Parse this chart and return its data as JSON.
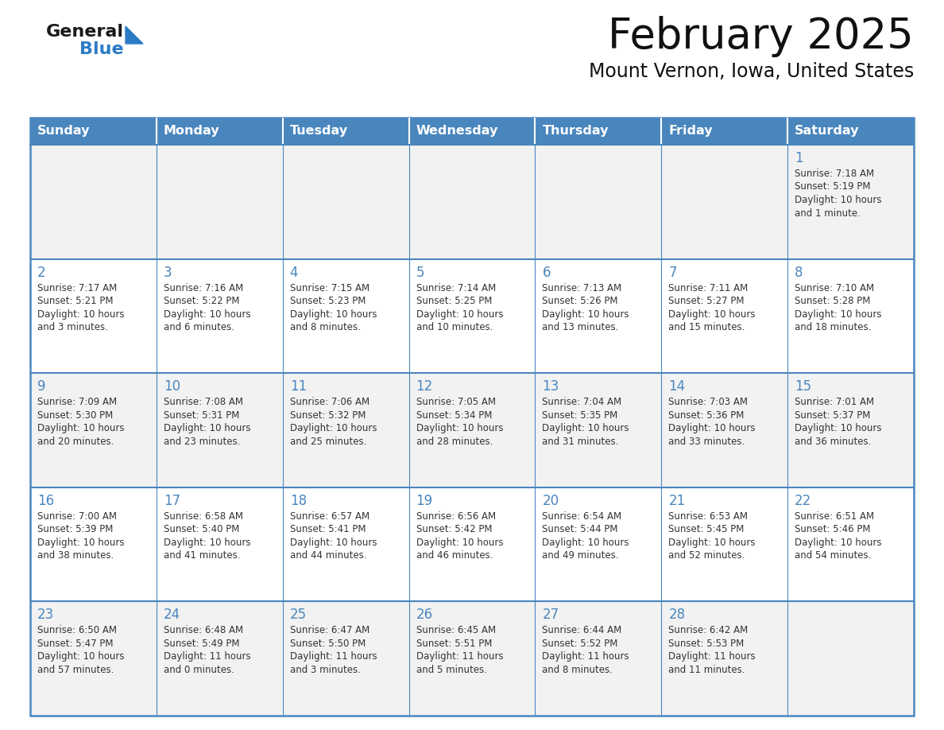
{
  "title": "February 2025",
  "subtitle": "Mount Vernon, Iowa, United States",
  "header_bg": "#4a86be",
  "header_text_color": "#ffffff",
  "cell_bg_odd": "#f2f2f2",
  "cell_bg_even": "#ffffff",
  "day_number_color": "#4a86be",
  "cell_text_color": "#333333",
  "border_color": "#4a86be",
  "days_of_week": [
    "Sunday",
    "Monday",
    "Tuesday",
    "Wednesday",
    "Thursday",
    "Friday",
    "Saturday"
  ],
  "logo_general_color": "#1a1a1a",
  "logo_blue_color": "#2b7bc4",
  "calendar_data": [
    [
      null,
      null,
      null,
      null,
      null,
      null,
      {
        "day": 1,
        "sunrise": "7:18 AM",
        "sunset": "5:19 PM",
        "daylight": "10 hours",
        "daylight2": "and 1 minute."
      }
    ],
    [
      {
        "day": 2,
        "sunrise": "7:17 AM",
        "sunset": "5:21 PM",
        "daylight": "10 hours",
        "daylight2": "and 3 minutes."
      },
      {
        "day": 3,
        "sunrise": "7:16 AM",
        "sunset": "5:22 PM",
        "daylight": "10 hours",
        "daylight2": "and 6 minutes."
      },
      {
        "day": 4,
        "sunrise": "7:15 AM",
        "sunset": "5:23 PM",
        "daylight": "10 hours",
        "daylight2": "and 8 minutes."
      },
      {
        "day": 5,
        "sunrise": "7:14 AM",
        "sunset": "5:25 PM",
        "daylight": "10 hours",
        "daylight2": "and 10 minutes."
      },
      {
        "day": 6,
        "sunrise": "7:13 AM",
        "sunset": "5:26 PM",
        "daylight": "10 hours",
        "daylight2": "and 13 minutes."
      },
      {
        "day": 7,
        "sunrise": "7:11 AM",
        "sunset": "5:27 PM",
        "daylight": "10 hours",
        "daylight2": "and 15 minutes."
      },
      {
        "day": 8,
        "sunrise": "7:10 AM",
        "sunset": "5:28 PM",
        "daylight": "10 hours",
        "daylight2": "and 18 minutes."
      }
    ],
    [
      {
        "day": 9,
        "sunrise": "7:09 AM",
        "sunset": "5:30 PM",
        "daylight": "10 hours",
        "daylight2": "and 20 minutes."
      },
      {
        "day": 10,
        "sunrise": "7:08 AM",
        "sunset": "5:31 PM",
        "daylight": "10 hours",
        "daylight2": "and 23 minutes."
      },
      {
        "day": 11,
        "sunrise": "7:06 AM",
        "sunset": "5:32 PM",
        "daylight": "10 hours",
        "daylight2": "and 25 minutes."
      },
      {
        "day": 12,
        "sunrise": "7:05 AM",
        "sunset": "5:34 PM",
        "daylight": "10 hours",
        "daylight2": "and 28 minutes."
      },
      {
        "day": 13,
        "sunrise": "7:04 AM",
        "sunset": "5:35 PM",
        "daylight": "10 hours",
        "daylight2": "and 31 minutes."
      },
      {
        "day": 14,
        "sunrise": "7:03 AM",
        "sunset": "5:36 PM",
        "daylight": "10 hours",
        "daylight2": "and 33 minutes."
      },
      {
        "day": 15,
        "sunrise": "7:01 AM",
        "sunset": "5:37 PM",
        "daylight": "10 hours",
        "daylight2": "and 36 minutes."
      }
    ],
    [
      {
        "day": 16,
        "sunrise": "7:00 AM",
        "sunset": "5:39 PM",
        "daylight": "10 hours",
        "daylight2": "and 38 minutes."
      },
      {
        "day": 17,
        "sunrise": "6:58 AM",
        "sunset": "5:40 PM",
        "daylight": "10 hours",
        "daylight2": "and 41 minutes."
      },
      {
        "day": 18,
        "sunrise": "6:57 AM",
        "sunset": "5:41 PM",
        "daylight": "10 hours",
        "daylight2": "and 44 minutes."
      },
      {
        "day": 19,
        "sunrise": "6:56 AM",
        "sunset": "5:42 PM",
        "daylight": "10 hours",
        "daylight2": "and 46 minutes."
      },
      {
        "day": 20,
        "sunrise": "6:54 AM",
        "sunset": "5:44 PM",
        "daylight": "10 hours",
        "daylight2": "and 49 minutes."
      },
      {
        "day": 21,
        "sunrise": "6:53 AM",
        "sunset": "5:45 PM",
        "daylight": "10 hours",
        "daylight2": "and 52 minutes."
      },
      {
        "day": 22,
        "sunrise": "6:51 AM",
        "sunset": "5:46 PM",
        "daylight": "10 hours",
        "daylight2": "and 54 minutes."
      }
    ],
    [
      {
        "day": 23,
        "sunrise": "6:50 AM",
        "sunset": "5:47 PM",
        "daylight": "10 hours",
        "daylight2": "and 57 minutes."
      },
      {
        "day": 24,
        "sunrise": "6:48 AM",
        "sunset": "5:49 PM",
        "daylight": "11 hours",
        "daylight2": "and 0 minutes."
      },
      {
        "day": 25,
        "sunrise": "6:47 AM",
        "sunset": "5:50 PM",
        "daylight": "11 hours",
        "daylight2": "and 3 minutes."
      },
      {
        "day": 26,
        "sunrise": "6:45 AM",
        "sunset": "5:51 PM",
        "daylight": "11 hours",
        "daylight2": "and 5 minutes."
      },
      {
        "day": 27,
        "sunrise": "6:44 AM",
        "sunset": "5:52 PM",
        "daylight": "11 hours",
        "daylight2": "and 8 minutes."
      },
      {
        "day": 28,
        "sunrise": "6:42 AM",
        "sunset": "5:53 PM",
        "daylight": "11 hours",
        "daylight2": "and 11 minutes."
      },
      null
    ]
  ]
}
